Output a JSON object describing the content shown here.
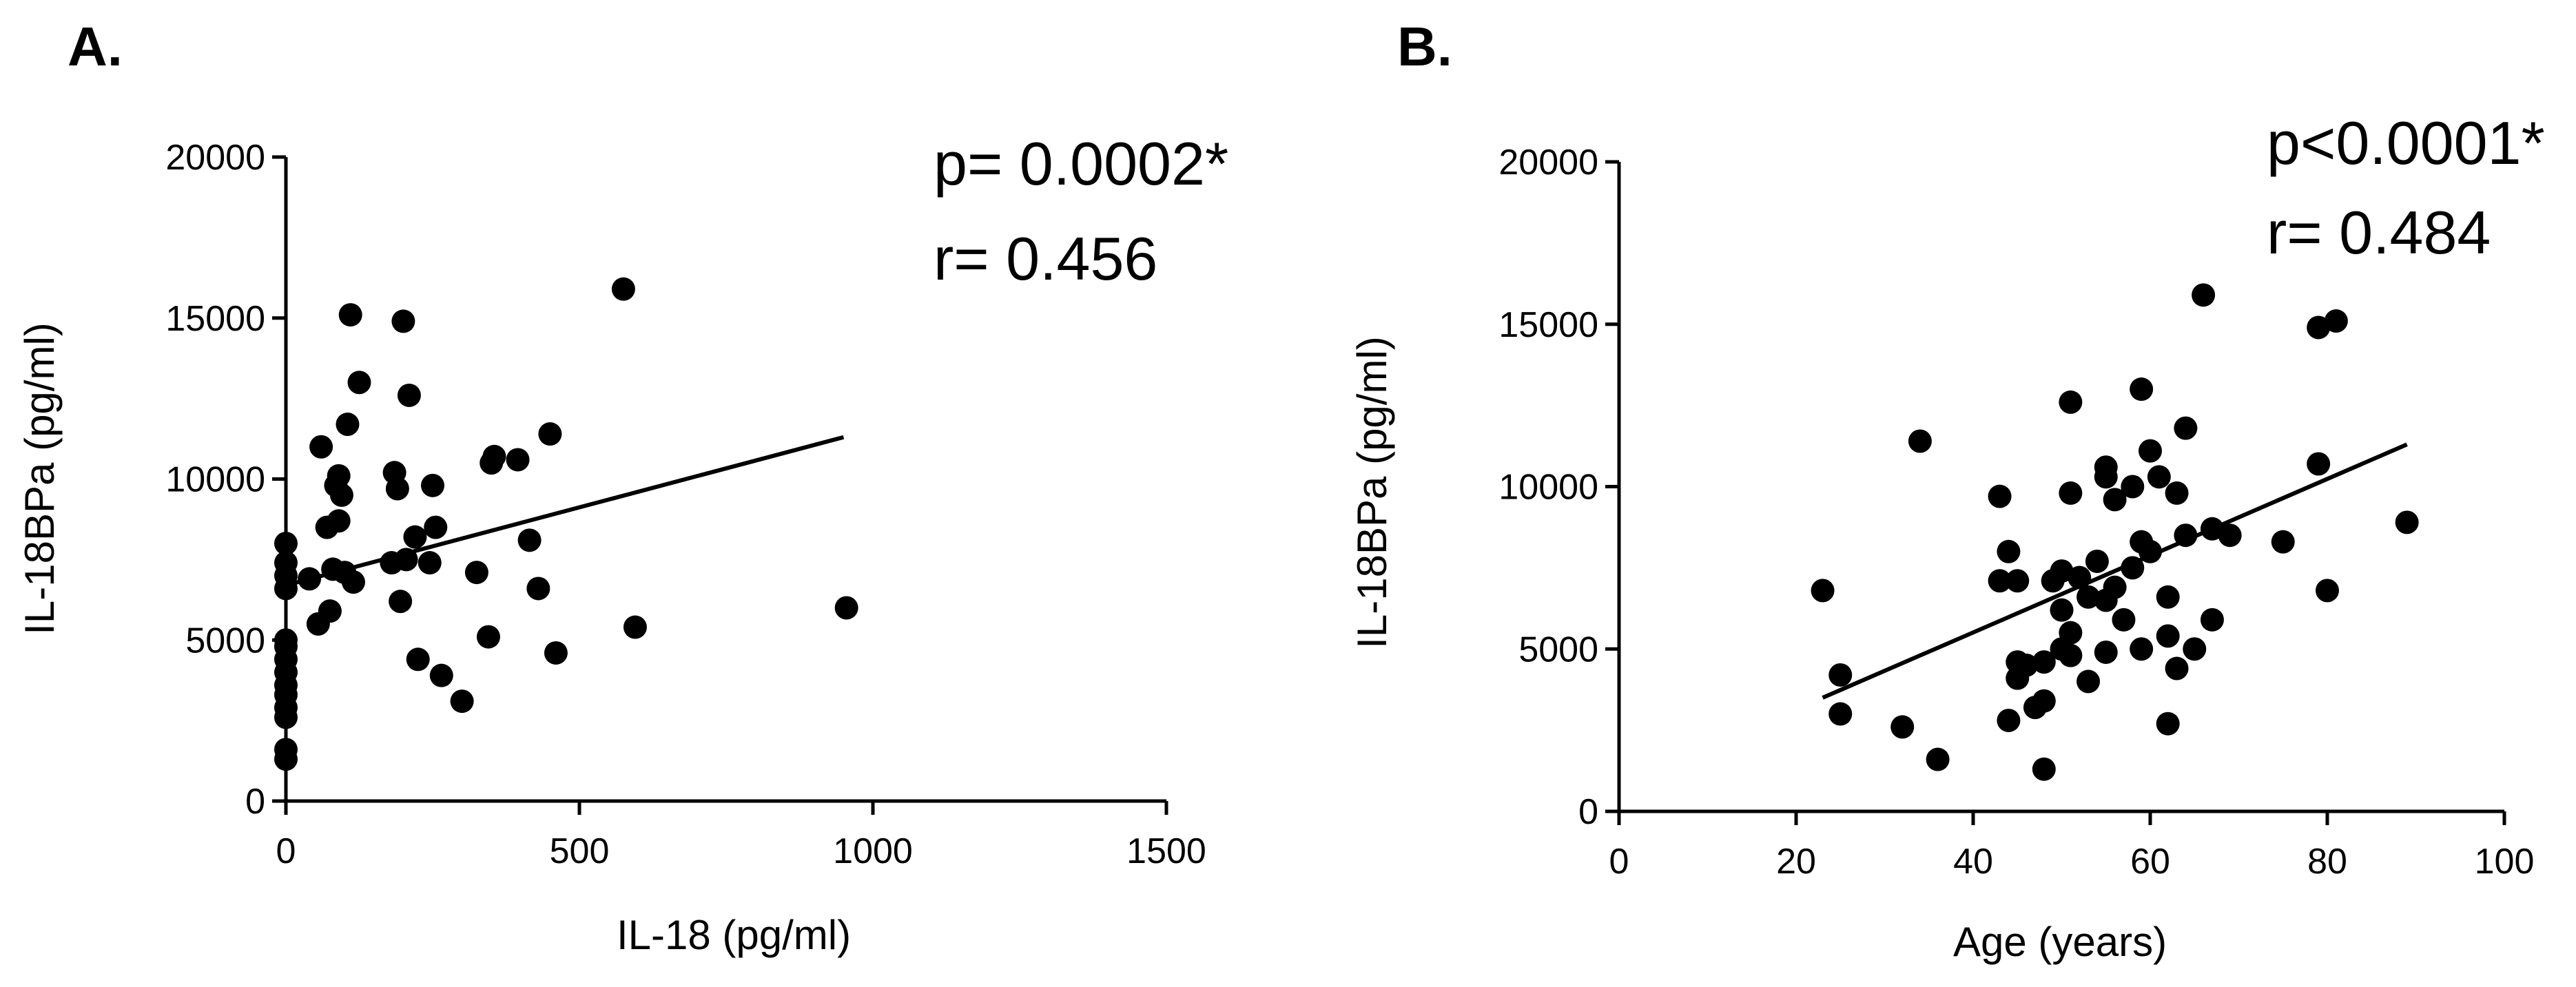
{
  "chart_data": [
    {
      "type": "scatter",
      "panel_label": "A.",
      "xlabel": "IL-18 (pg/ml)",
      "ylabel": "IL-18BPa (pg/ml)",
      "xlim": [
        0,
        1500
      ],
      "ylim": [
        0,
        20000
      ],
      "xticks": [
        "0",
        "500",
        "1000",
        "1500"
      ],
      "yticks": [
        "0",
        "5000",
        "10000",
        "15000",
        "20000"
      ],
      "stats": [
        "p= 0.0002*",
        "r= 0.456"
      ],
      "grid": false,
      "fit_line": {
        "x": [
          0,
          950
        ],
        "y": [
          6700,
          11300
        ]
      },
      "series": [
        {
          "points": [
            [
              0,
              1300
            ],
            [
              0,
              1600
            ],
            [
              0,
              2600
            ],
            [
              0,
              2900
            ],
            [
              0,
              3300
            ],
            [
              0,
              3600
            ],
            [
              0,
              4000
            ],
            [
              0,
              4400
            ],
            [
              0,
              4800
            ],
            [
              0,
              5000
            ],
            [
              0,
              6600
            ],
            [
              0,
              7000
            ],
            [
              0,
              7400
            ],
            [
              0,
              8000
            ],
            [
              40,
              6900
            ],
            [
              55,
              5500
            ],
            [
              60,
              11000
            ],
            [
              70,
              8500
            ],
            [
              75,
              5900
            ],
            [
              80,
              7200
            ],
            [
              85,
              9800
            ],
            [
              90,
              8700
            ],
            [
              90,
              10100
            ],
            [
              95,
              9500
            ],
            [
              100,
              7100
            ],
            [
              105,
              11700
            ],
            [
              110,
              15100
            ],
            [
              115,
              6800
            ],
            [
              125,
              13000
            ],
            [
              180,
              7400
            ],
            [
              185,
              10200
            ],
            [
              190,
              9700
            ],
            [
              195,
              6200
            ],
            [
              200,
              14900
            ],
            [
              205,
              7500
            ],
            [
              210,
              12600
            ],
            [
              220,
              8200
            ],
            [
              225,
              4400
            ],
            [
              245,
              7400
            ],
            [
              250,
              9800
            ],
            [
              255,
              8500
            ],
            [
              265,
              3900
            ],
            [
              300,
              3100
            ],
            [
              325,
              7100
            ],
            [
              345,
              5100
            ],
            [
              350,
              10500
            ],
            [
              355,
              10700
            ],
            [
              395,
              10600
            ],
            [
              415,
              8100
            ],
            [
              430,
              6600
            ],
            [
              450,
              11400
            ],
            [
              460,
              4600
            ],
            [
              575,
              15900
            ],
            [
              595,
              5400
            ],
            [
              955,
              6000
            ]
          ]
        }
      ]
    },
    {
      "type": "scatter",
      "panel_label": "B.",
      "xlabel": "Age (years)",
      "ylabel": "IL-18BPa (pg/ml)",
      "xlim": [
        0,
        100
      ],
      "ylim": [
        0,
        20000
      ],
      "xticks": [
        "0",
        "20",
        "40",
        "60",
        "80",
        "100"
      ],
      "yticks": [
        "0",
        "5000",
        "10000",
        "15000",
        "20000"
      ],
      "stats": [
        "p<0.0001*",
        "r= 0.484"
      ],
      "grid": false,
      "fit_line": {
        "x": [
          23,
          89
        ],
        "y": [
          3500,
          11300
        ]
      },
      "series": [
        {
          "points": [
            [
              23,
              6800
            ],
            [
              25,
              4200
            ],
            [
              25,
              3000
            ],
            [
              32,
              2600
            ],
            [
              34,
              11400
            ],
            [
              36,
              1600
            ],
            [
              43,
              9700
            ],
            [
              43,
              7100
            ],
            [
              44,
              8000
            ],
            [
              44,
              2800
            ],
            [
              45,
              7100
            ],
            [
              45,
              4600
            ],
            [
              45,
              4100
            ],
            [
              46,
              4500
            ],
            [
              47,
              3200
            ],
            [
              48,
              1300
            ],
            [
              48,
              3400
            ],
            [
              48,
              4600
            ],
            [
              49,
              7100
            ],
            [
              50,
              5000
            ],
            [
              50,
              6200
            ],
            [
              50,
              7400
            ],
            [
              51,
              12600
            ],
            [
              51,
              9800
            ],
            [
              51,
              5500
            ],
            [
              51,
              4800
            ],
            [
              52,
              7200
            ],
            [
              53,
              6600
            ],
            [
              53,
              4000
            ],
            [
              54,
              7700
            ],
            [
              55,
              10600
            ],
            [
              55,
              10300
            ],
            [
              55,
              4900
            ],
            [
              55,
              6500
            ],
            [
              56,
              9600
            ],
            [
              56,
              6900
            ],
            [
              57,
              5900
            ],
            [
              58,
              7500
            ],
            [
              58,
              10000
            ],
            [
              59,
              13000
            ],
            [
              59,
              8300
            ],
            [
              59,
              5000
            ],
            [
              60,
              11100
            ],
            [
              60,
              8000
            ],
            [
              61,
              10300
            ],
            [
              62,
              6600
            ],
            [
              62,
              5400
            ],
            [
              62,
              2700
            ],
            [
              63,
              9800
            ],
            [
              63,
              4400
            ],
            [
              64,
              11800
            ],
            [
              64,
              8500
            ],
            [
              65,
              5000
            ],
            [
              66,
              15900
            ],
            [
              67,
              8700
            ],
            [
              67,
              5900
            ],
            [
              69,
              8500
            ],
            [
              75,
              8300
            ],
            [
              79,
              10700
            ],
            [
              79,
              14900
            ],
            [
              80,
              6800
            ],
            [
              81,
              15100
            ],
            [
              89,
              8900
            ]
          ]
        }
      ]
    }
  ]
}
